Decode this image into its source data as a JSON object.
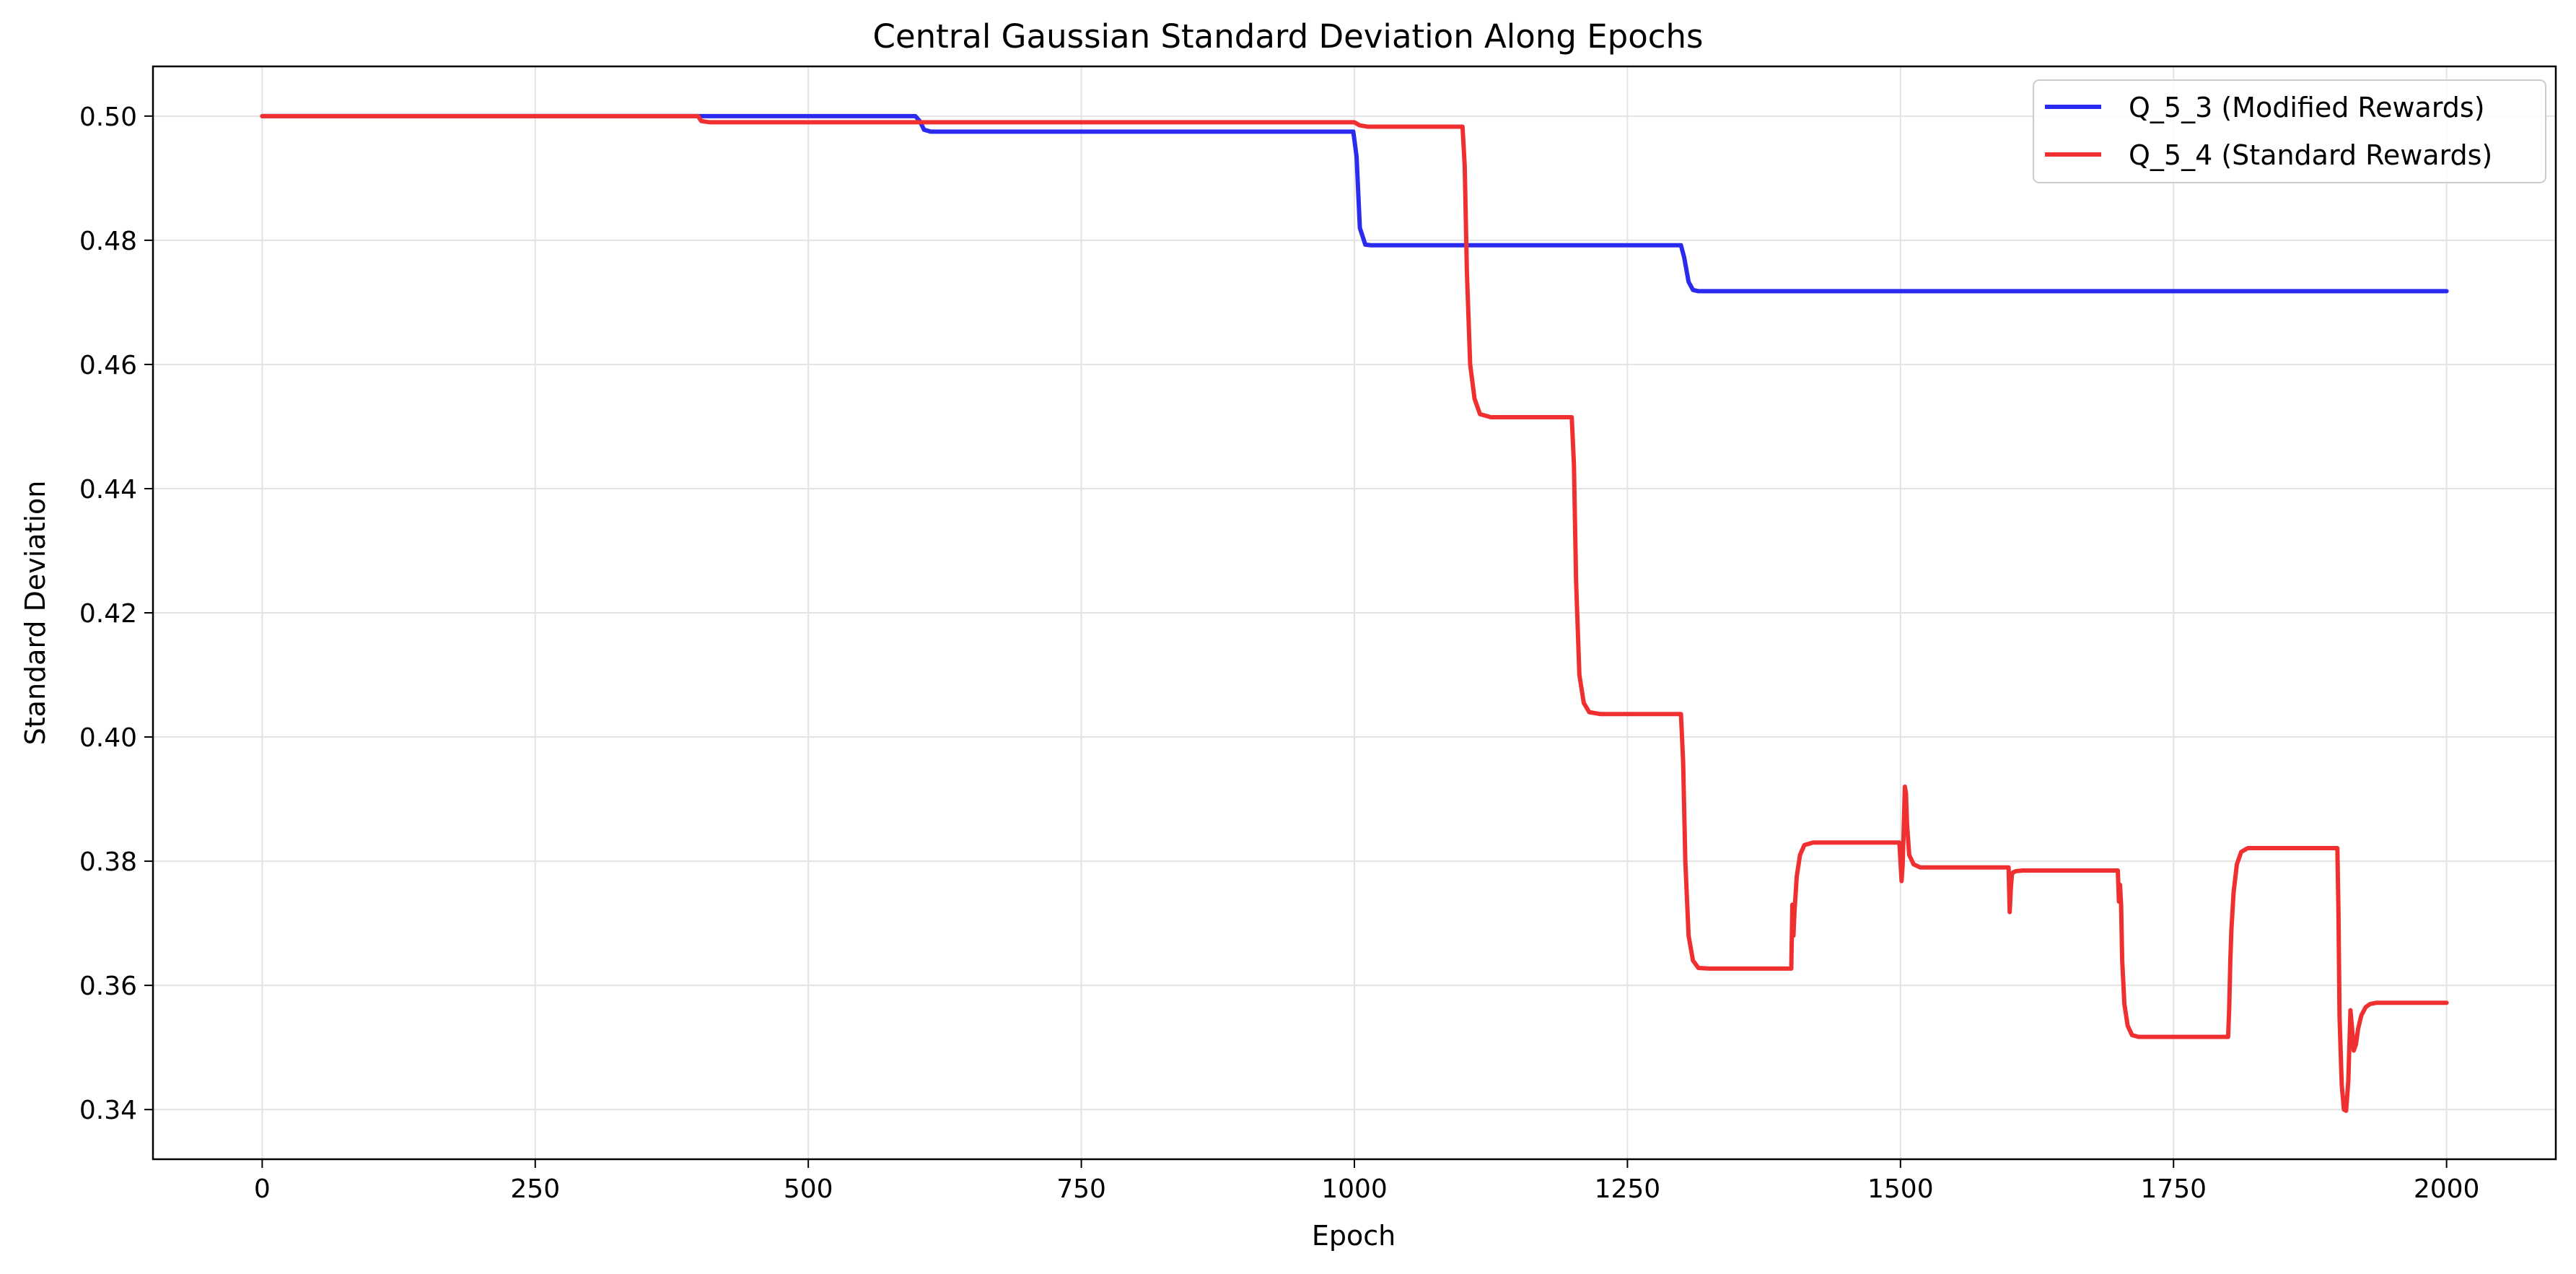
{
  "chart_data": {
    "type": "line",
    "title": "Central Gaussian Standard Deviation Along Epochs",
    "xlabel": "Epoch",
    "ylabel": "Standard Deviation",
    "xlim": [
      -100,
      2100
    ],
    "ylim": [
      0.332,
      0.508
    ],
    "x_ticks": [
      0,
      250,
      500,
      750,
      1000,
      1250,
      1500,
      1750,
      2000
    ],
    "y_ticks": [
      0.34,
      0.36,
      0.38,
      0.4,
      0.42,
      0.44,
      0.46,
      0.48,
      0.5
    ],
    "x_tick_labels": [
      "0",
      "250",
      "500",
      "750",
      "1000",
      "1250",
      "1500",
      "1750",
      "2000"
    ],
    "y_tick_labels": [
      "0.34",
      "0.36",
      "0.38",
      "0.40",
      "0.42",
      "0.44",
      "0.46",
      "0.48",
      "0.50"
    ],
    "grid": true,
    "legend_position": "top-right",
    "series": [
      {
        "name": "Q_5_3 (Modified Rewards)",
        "color": "#2b2bf0",
        "x": [
          0,
          400,
          598,
          602,
          606,
          612,
          999,
          1002,
          1005,
          1010,
          1015,
          1299,
          1302,
          1306,
          1310,
          1315,
          2000
        ],
        "y": [
          0.5,
          0.5,
          0.5,
          0.4992,
          0.4978,
          0.4975,
          0.4975,
          0.4935,
          0.482,
          0.4793,
          0.4792,
          0.4792,
          0.4772,
          0.4733,
          0.472,
          0.4718,
          0.4718
        ]
      },
      {
        "name": "Q_5_4 (Standard Rewards)",
        "color": "#f03030",
        "x": [
          0,
          399,
          402,
          410,
          1000,
          1005,
          1012,
          1099,
          1101,
          1103,
          1106,
          1110,
          1115,
          1125,
          1199,
          1201,
          1203,
          1206,
          1210,
          1215,
          1225,
          1299,
          1301,
          1303,
          1306,
          1310,
          1315,
          1325,
          1398,
          1400,
          1401,
          1402,
          1403,
          1405,
          1408,
          1412,
          1420,
          1499,
          1501,
          1502,
          1503,
          1504,
          1505,
          1506,
          1508,
          1512,
          1518,
          1525,
          1599,
          1600,
          1601,
          1602,
          1603,
          1606,
          1612,
          1618,
          1699,
          1700,
          1701,
          1702,
          1703,
          1705,
          1708,
          1712,
          1718,
          1725,
          1799,
          1800,
          1801,
          1802,
          1803,
          1805,
          1808,
          1812,
          1818,
          1900,
          1901,
          1902,
          1904,
          1906,
          1908,
          1910,
          1912,
          1914,
          1915,
          1917,
          1919,
          1922,
          1926,
          1930,
          1936,
          1945,
          2000
        ],
        "y": [
          0.5,
          0.5,
          0.4992,
          0.499,
          0.499,
          0.4985,
          0.4983,
          0.4983,
          0.492,
          0.475,
          0.46,
          0.4545,
          0.452,
          0.4515,
          0.4515,
          0.444,
          0.425,
          0.41,
          0.4055,
          0.404,
          0.4037,
          0.4037,
          0.396,
          0.38,
          0.368,
          0.364,
          0.3628,
          0.3627,
          0.3627,
          0.3627,
          0.373,
          0.368,
          0.372,
          0.3775,
          0.381,
          0.3826,
          0.383,
          0.383,
          0.3768,
          0.3795,
          0.3855,
          0.392,
          0.391,
          0.386,
          0.381,
          0.3795,
          0.379,
          0.379,
          0.379,
          0.3718,
          0.3755,
          0.3778,
          0.3782,
          0.3784,
          0.3785,
          0.3785,
          0.3785,
          0.3735,
          0.3762,
          0.373,
          0.364,
          0.357,
          0.3535,
          0.352,
          0.3517,
          0.3517,
          0.3517,
          0.3517,
          0.3565,
          0.364,
          0.369,
          0.375,
          0.3795,
          0.3815,
          0.3821,
          0.3821,
          0.372,
          0.355,
          0.344,
          0.34,
          0.3398,
          0.3445,
          0.356,
          0.352,
          0.3495,
          0.3505,
          0.353,
          0.3552,
          0.3565,
          0.357,
          0.3572,
          0.3572,
          0.3572
        ]
      }
    ]
  }
}
